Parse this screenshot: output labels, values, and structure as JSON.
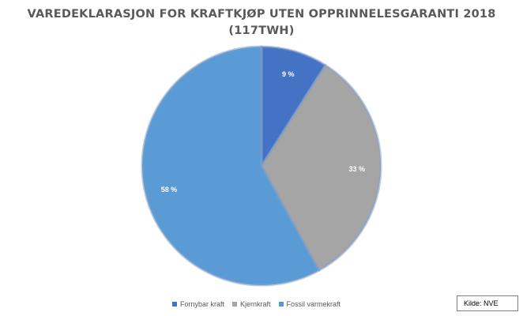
{
  "chart_data": {
    "type": "pie",
    "title_lines": [
      "VAREDEKLARASJON FOR KRAFTKJØP UTEN OPPRINNELESGARANTI 2018",
      "(117TWH)"
    ],
    "categories": [
      "Fornybar kraft",
      "Kjernkraft",
      "Fossil varmekraft"
    ],
    "values": [
      9,
      33,
      58
    ],
    "labels": [
      "9 %",
      "33 %",
      "58 %"
    ],
    "colors": [
      "#4472c4",
      "#a5a5a5",
      "#5b9bd5"
    ],
    "legend_position": "bottom",
    "start_angle": "top",
    "direction": "clockwise"
  },
  "source": "Kilde: NVE"
}
